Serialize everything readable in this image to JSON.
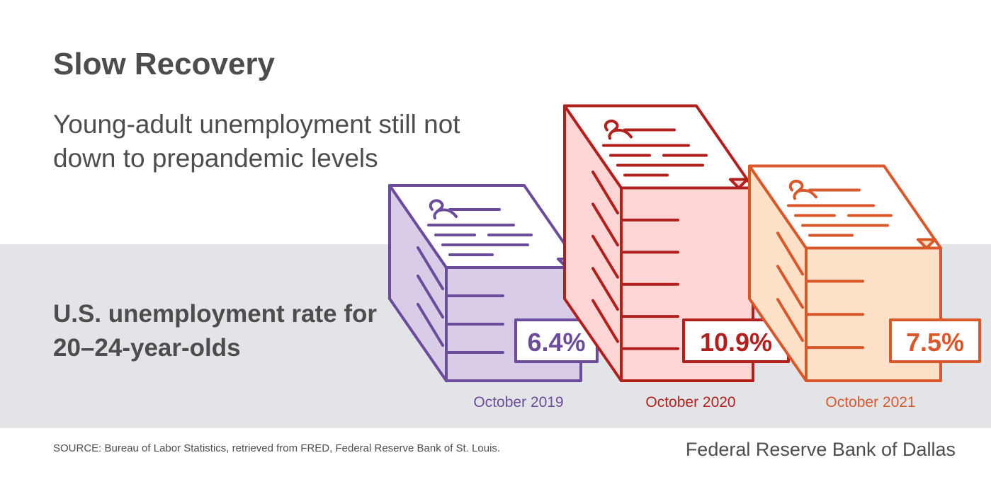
{
  "header": {
    "title": "Slow Recovery",
    "subtitle": "Young-adult unemployment still not down to prepandemic levels"
  },
  "chart_data": {
    "type": "bar",
    "title": "Slow Recovery",
    "subtitle": "Young-adult unemployment still not down to prepandemic levels",
    "ylabel": "U.S. unemployment rate for 20–24-year-olds",
    "categories": [
      "October 2019",
      "October 2020",
      "October 2021"
    ],
    "values": [
      6.4,
      10.9,
      7.5
    ],
    "value_labels": [
      "6.4%",
      "10.9%",
      "7.5%"
    ],
    "colors": [
      {
        "stroke": "#6b4c9a",
        "fill": "#d9cce8"
      },
      {
        "stroke": "#b2201e",
        "fill": "#fdd5d5"
      },
      {
        "stroke": "#d9582b",
        "fill": "#fde0c8"
      }
    ],
    "style": "stacks of paper documents, height proportional to value"
  },
  "footer": {
    "source": "SOURCE: Bureau of Labor Statistics, retrieved from FRED, Federal Reserve Bank of St. Louis.",
    "brand": "Federal Reserve Bank of Dallas"
  }
}
